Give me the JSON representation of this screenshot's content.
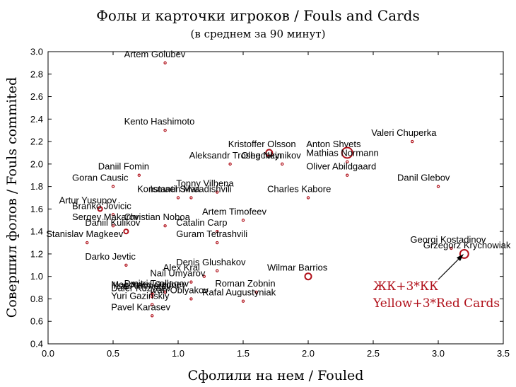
{
  "colors": {
    "marker": "#b0101a",
    "axis": "#000000",
    "annotation": "#b0101a"
  },
  "chart_data": {
    "type": "scatter",
    "title": "Фолы и карточки игроков / Fouls and Cards",
    "subtitle": "(в среднем за 90 минут)",
    "xlabel": "Сфолили на нем / Fouled",
    "ylabel": "Совершил фолов / Fouls commited",
    "xlim": [
      0,
      3.5
    ],
    "ylim": [
      0.4,
      3.0
    ],
    "xticks": [
      "0.0",
      "0.5",
      "1.0",
      "1.5",
      "2.0",
      "2.5",
      "3.0",
      "3.5"
    ],
    "yticks": [
      "0.4",
      "0.6",
      "0.8",
      "1.0",
      "1.2",
      "1.4",
      "1.6",
      "1.8",
      "2.0",
      "2.2",
      "2.4",
      "2.6",
      "2.8",
      "3.0"
    ],
    "grid": false,
    "legend": "none",
    "marker_size_meaning": "cards (yellow + 3*red)",
    "annotation": {
      "line1": "ЖК+3*КК",
      "line2": "Yellow+3*Red Cards",
      "points_to": "Grzegorz Krychowiak"
    },
    "points": [
      {
        "name": "Artem Golubev",
        "x": 0.9,
        "y": 2.9,
        "size": 1,
        "label_anchor": "start"
      },
      {
        "name": "Kento Hashimoto",
        "x": 0.9,
        "y": 2.3,
        "size": 1,
        "label_anchor": "start"
      },
      {
        "name": "Valeri Chuperka",
        "x": 2.8,
        "y": 2.2,
        "size": 1,
        "label_anchor": "start"
      },
      {
        "name": "Anton Shvets",
        "x": 2.3,
        "y": 2.1,
        "size": 5,
        "label_anchor": "start"
      },
      {
        "name": "Kristoffer Olsson",
        "x": 1.7,
        "y": 2.1,
        "size": 3,
        "label_anchor": "start"
      },
      {
        "name": "Mathias Normann",
        "x": 2.3,
        "y": 2.02,
        "size": 1,
        "label_anchor": "start"
      },
      {
        "name": "Aleksandr Troshechkin",
        "x": 1.4,
        "y": 2.0,
        "size": 1,
        "label_anchor": "start"
      },
      {
        "name": "Oleg Neynikov",
        "x": 1.8,
        "y": 2.0,
        "size": 1,
        "label_anchor": "start"
      },
      {
        "name": "Oliver Abildgaard",
        "x": 2.3,
        "y": 1.9,
        "size": 1,
        "label_anchor": "start"
      },
      {
        "name": "Daniil Fomin",
        "x": 0.7,
        "y": 1.9,
        "size": 1,
        "label_anchor": "start"
      },
      {
        "name": "Goran Causic",
        "x": 0.5,
        "y": 1.8,
        "size": 1,
        "label_anchor": "start"
      },
      {
        "name": "Danil Glebov",
        "x": 3.0,
        "y": 1.8,
        "size": 1,
        "label_anchor": "start"
      },
      {
        "name": "Tonny Vilhena",
        "x": 1.3,
        "y": 1.75,
        "size": 1,
        "label_anchor": "start"
      },
      {
        "name": "Konstantin Maradishvili",
        "x": 1.0,
        "y": 1.7,
        "size": 1,
        "label_anchor": "start"
      },
      {
        "name": "Ismael Silva",
        "x": 1.1,
        "y": 1.7,
        "size": 1,
        "label_anchor": "start"
      },
      {
        "name": "Charles Kabore",
        "x": 2.0,
        "y": 1.7,
        "size": 1,
        "label_anchor": "start"
      },
      {
        "name": "Artur Yusupov",
        "x": 0.4,
        "y": 1.6,
        "size": 2,
        "label_anchor": "start"
      },
      {
        "name": "Branko Jovicic",
        "x": 0.5,
        "y": 1.55,
        "size": 1,
        "label_anchor": "start"
      },
      {
        "name": "Artem Timofeev",
        "x": 1.5,
        "y": 1.5,
        "size": 1,
        "label_anchor": "start"
      },
      {
        "name": "Sergey Makarov",
        "x": 0.5,
        "y": 1.45,
        "size": 1,
        "label_anchor": "start"
      },
      {
        "name": "Christian Noboa",
        "x": 0.9,
        "y": 1.45,
        "size": 1,
        "label_anchor": "start"
      },
      {
        "name": "Daniil Kulikov",
        "x": 0.6,
        "y": 1.4,
        "size": 2,
        "label_anchor": "start"
      },
      {
        "name": "Catalin Carp",
        "x": 1.3,
        "y": 1.4,
        "size": 1,
        "label_anchor": "start"
      },
      {
        "name": "Stanislav Magkeev",
        "x": 0.3,
        "y": 1.3,
        "size": 1,
        "label_anchor": "start"
      },
      {
        "name": "Guram Tetrashvili",
        "x": 1.3,
        "y": 1.3,
        "size": 1,
        "label_anchor": "start"
      },
      {
        "name": "Georgi Kostadinov",
        "x": 3.1,
        "y": 1.25,
        "size": 1,
        "label_anchor": "start"
      },
      {
        "name": "Grzegorz Krychowiak",
        "x": 3.2,
        "y": 1.2,
        "size": 4,
        "label_anchor": "start"
      },
      {
        "name": "Darko Jevtic",
        "x": 0.6,
        "y": 1.1,
        "size": 1,
        "label_anchor": "start"
      },
      {
        "name": "Denis Glushakov",
        "x": 1.3,
        "y": 1.05,
        "size": 1,
        "label_anchor": "start"
      },
      {
        "name": "Alex Kral",
        "x": 1.2,
        "y": 1.0,
        "size": 1,
        "label_anchor": "start"
      },
      {
        "name": "Wilmar Barrios",
        "x": 2.0,
        "y": 1.0,
        "size": 3,
        "label_anchor": "start"
      },
      {
        "name": "Nail Umyarov",
        "x": 1.1,
        "y": 0.95,
        "size": 1,
        "label_anchor": "start"
      },
      {
        "name": "Magomed Ozdoev",
        "x": 0.8,
        "y": 0.85,
        "size": 1,
        "label_anchor": "start"
      },
      {
        "name": "Daler Kuzyaev",
        "x": 0.8,
        "y": 0.82,
        "size": 1,
        "label_anchor": "start"
      },
      {
        "name": "Ilzat Akhmetov",
        "x": 0.8,
        "y": 0.84,
        "size": 1,
        "label_anchor": "start"
      },
      {
        "name": "Dmitri Tsallagov",
        "x": 0.9,
        "y": 0.86,
        "size": 1,
        "label_anchor": "start"
      },
      {
        "name": "Ivan Oblyakov",
        "x": 1.1,
        "y": 0.8,
        "size": 1,
        "label_anchor": "start"
      },
      {
        "name": "Roman Zobnin",
        "x": 1.6,
        "y": 0.86,
        "size": 1,
        "label_anchor": "start"
      },
      {
        "name": "Rafal Augustyniak",
        "x": 1.5,
        "y": 0.78,
        "size": 1,
        "label_anchor": "start"
      },
      {
        "name": "Yuri Gazinskiy",
        "x": 0.8,
        "y": 0.75,
        "size": 1,
        "label_anchor": "start"
      },
      {
        "name": "Pavel Karasev",
        "x": 0.8,
        "y": 0.65,
        "size": 1,
        "label_anchor": "start"
      }
    ]
  }
}
